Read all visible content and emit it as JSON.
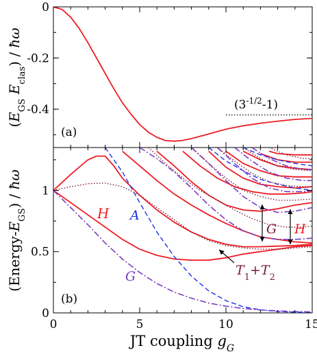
{
  "colors": {
    "solid": "#ee1c24",
    "dashed": "#1a31e6",
    "dashdot": "#7a3cc2",
    "dotted": "#7a1a3a",
    "axes": "#000000"
  },
  "chart_data": [
    {
      "panel": "a",
      "type": "line",
      "panel_label": "(a)",
      "ylabel": "(E_GS  E_clas) / ħω",
      "xlim": [
        0,
        15
      ],
      "ylim": [
        -0.55,
        0
      ],
      "yticks": [
        0,
        -0.2,
        -0.4
      ],
      "ytick_labels": [
        "0",
        "-0.2",
        "-0.4"
      ],
      "annotation": "(3^-1/2 - 1)",
      "asymptote_value": -0.4226,
      "asymptote_x": [
        10,
        15
      ],
      "series": [
        {
          "style": "solid",
          "x": [
            0,
            0.5,
            1,
            1.5,
            2,
            2.5,
            3,
            3.5,
            4,
            4.5,
            5,
            5.5,
            6,
            6.5,
            7,
            7.5,
            8,
            9,
            10,
            11,
            12,
            13,
            14,
            15
          ],
          "y": [
            0,
            -0.01,
            -0.04,
            -0.085,
            -0.14,
            -0.2,
            -0.26,
            -0.32,
            -0.375,
            -0.42,
            -0.46,
            -0.49,
            -0.51,
            -0.523,
            -0.525,
            -0.522,
            -0.515,
            -0.497,
            -0.478,
            -0.465,
            -0.455,
            -0.447,
            -0.44,
            -0.436
          ]
        }
      ]
    },
    {
      "panel": "b",
      "type": "line",
      "panel_label": "(b)",
      "xlabel": "JT coupling g_G",
      "ylabel": "(Energy-E_GS) / ħω",
      "xlim": [
        0,
        15
      ],
      "ylim": [
        0,
        1.35
      ],
      "xticks": [
        0,
        5,
        10,
        15
      ],
      "xtick_labels": [
        "0",
        "5",
        "10",
        "15"
      ],
      "yticks": [
        0,
        0.5,
        1
      ],
      "ytick_labels": [
        "0",
        "0.5",
        "1"
      ],
      "annotations": [
        {
          "text": "H",
          "x": 3.0,
          "y": 0.85
        },
        {
          "text": "A",
          "x": 4.9,
          "y": 0.76
        },
        {
          "text": "G",
          "x": 4.4,
          "y": 0.3
        },
        {
          "text": "G",
          "x": 12.8,
          "y": 0.65
        },
        {
          "text": "H",
          "x": 14.2,
          "y": 0.65
        },
        {
          "text": "T1+T2",
          "x": 11.0,
          "y": 0.3
        }
      ],
      "series": [
        {
          "style": "solid",
          "x": [
            0,
            1,
            2,
            3,
            4,
            5,
            6,
            7,
            8,
            9,
            10,
            11,
            12,
            13,
            14,
            15
          ],
          "y": [
            1.0,
            0.9,
            0.8,
            0.7,
            0.6,
            0.52,
            0.47,
            0.44,
            0.43,
            0.43,
            0.45,
            0.48,
            0.5,
            0.52,
            0.54,
            0.55
          ]
        },
        {
          "style": "solid",
          "x": [
            0,
            1,
            2,
            2.5,
            3,
            3.5,
            4,
            5,
            6,
            7,
            8,
            9,
            10,
            11,
            12,
            13,
            14,
            15
          ],
          "y": [
            1.0,
            1.13,
            1.25,
            1.28,
            1.28,
            1.2,
            1.1,
            0.96,
            0.84,
            0.74,
            0.66,
            0.6,
            0.56,
            0.54,
            0.54,
            0.545,
            0.55,
            0.56
          ]
        },
        {
          "style": "solid",
          "x": [
            4,
            5,
            6,
            7,
            8,
            9,
            10,
            11,
            12,
            13,
            14,
            15
          ],
          "y": [
            1.32,
            1.2,
            1.08,
            0.97,
            0.88,
            0.8,
            0.73,
            0.67,
            0.62,
            0.6,
            0.58,
            0.57
          ]
        },
        {
          "style": "solid",
          "x": [
            6,
            7,
            8,
            9,
            10,
            11,
            12,
            13,
            14,
            15
          ],
          "y": [
            1.32,
            1.2,
            1.07,
            0.96,
            0.88,
            0.84,
            0.83,
            0.85,
            0.88,
            0.9
          ]
        },
        {
          "style": "solid",
          "x": [
            7.5,
            8.5,
            9.5,
            10.5,
            11.5,
            12.5,
            13.5,
            14.5,
            15
          ],
          "y": [
            1.32,
            1.2,
            1.1,
            1.03,
            0.99,
            0.97,
            0.97,
            0.98,
            0.99
          ]
        },
        {
          "style": "solid",
          "x": [
            9,
            10,
            11,
            12,
            13,
            14,
            15
          ],
          "y": [
            1.32,
            1.19,
            1.1,
            1.05,
            1.03,
            1.02,
            1.03
          ]
        },
        {
          "style": "solid",
          "x": [
            10,
            11,
            12,
            13,
            14,
            15
          ],
          "y": [
            1.32,
            1.22,
            1.16,
            1.12,
            1.11,
            1.11
          ]
        },
        {
          "style": "solid",
          "x": [
            11,
            12,
            13,
            14,
            15
          ],
          "y": [
            1.32,
            1.25,
            1.2,
            1.18,
            1.17
          ]
        },
        {
          "style": "solid",
          "x": [
            12,
            13,
            14,
            15
          ],
          "y": [
            1.3,
            1.25,
            1.23,
            1.23
          ]
        },
        {
          "style": "solid",
          "x": [
            12.5,
            13,
            14,
            15
          ],
          "y": [
            1.32,
            1.3,
            1.29,
            1.29
          ]
        },
        {
          "style": "dashed",
          "x": [
            3,
            4,
            5,
            6,
            7,
            8,
            9,
            10,
            11,
            12,
            13,
            14,
            15
          ],
          "y": [
            1.35,
            1.15,
            0.9,
            0.66,
            0.46,
            0.3,
            0.18,
            0.1,
            0.05,
            0.025,
            0.012,
            0.006,
            0.003
          ]
        },
        {
          "style": "dashed",
          "x": [
            9,
            10,
            11,
            12,
            13,
            14,
            15
          ],
          "y": [
            1.35,
            1.24,
            1.16,
            1.09,
            1.05,
            1.02,
            1.0
          ]
        },
        {
          "style": "dashed",
          "x": [
            11,
            12,
            13,
            14,
            15
          ],
          "y": [
            1.35,
            1.29,
            1.25,
            1.22,
            1.2
          ]
        },
        {
          "style": "dashdot",
          "x": [
            0,
            1,
            2,
            3,
            4,
            5,
            6,
            7,
            8,
            9,
            10,
            11,
            12,
            13,
            14,
            15
          ],
          "y": [
            1.0,
            0.86,
            0.72,
            0.57,
            0.44,
            0.33,
            0.24,
            0.17,
            0.12,
            0.08,
            0.055,
            0.036,
            0.024,
            0.016,
            0.011,
            0.008
          ]
        },
        {
          "style": "dashdot",
          "x": [
            5,
            6,
            7,
            8,
            9,
            10,
            11,
            12,
            13,
            14,
            15
          ],
          "y": [
            1.35,
            1.26,
            1.15,
            1.02,
            0.88,
            0.76,
            0.67,
            0.62,
            0.6,
            0.6,
            0.61
          ]
        },
        {
          "style": "dashdot",
          "x": [
            8,
            9,
            10,
            11,
            12,
            13,
            14,
            15
          ],
          "y": [
            1.35,
            1.22,
            1.08,
            0.95,
            0.86,
            0.82,
            0.83,
            0.86
          ]
        },
        {
          "style": "dashdot",
          "x": [
            9.5,
            10.5,
            11.5,
            12.5,
            13.5,
            14.5,
            15
          ],
          "y": [
            1.35,
            1.22,
            1.1,
            1.02,
            0.99,
            0.99,
            1.0
          ]
        },
        {
          "style": "dashdot",
          "x": [
            10.5,
            11.5,
            12.5,
            13.5,
            14.5,
            15
          ],
          "y": [
            1.35,
            1.24,
            1.15,
            1.1,
            1.08,
            1.08
          ]
        },
        {
          "style": "dashdot",
          "x": [
            11.5,
            12.5,
            13.5,
            14.5,
            15
          ],
          "y": [
            1.35,
            1.26,
            1.2,
            1.17,
            1.17
          ]
        },
        {
          "style": "dotted",
          "x": [
            0,
            1,
            2,
            3,
            4,
            5,
            6,
            7,
            8,
            9,
            10,
            11,
            12,
            13,
            14,
            15
          ],
          "y": [
            1.0,
            1.03,
            1.055,
            1.06,
            1.03,
            0.96,
            0.86,
            0.76,
            0.66,
            0.59,
            0.55,
            0.53,
            0.52,
            0.52,
            0.53,
            0.54
          ]
        },
        {
          "style": "dotted",
          "x": [
            5.5,
            6.5,
            7.5,
            8.5,
            9.5,
            10.5,
            11.5,
            12.5,
            13.5,
            14.5,
            15
          ],
          "y": [
            1.35,
            1.22,
            1.1,
            1.0,
            0.92,
            0.84,
            0.77,
            0.72,
            0.7,
            0.7,
            0.71
          ]
        },
        {
          "style": "dotted",
          "x": [
            8,
            9,
            10,
            11,
            12,
            13,
            14,
            15
          ],
          "y": [
            1.35,
            1.22,
            1.1,
            1.0,
            0.95,
            0.92,
            0.92,
            0.93
          ]
        },
        {
          "style": "dotted",
          "x": [
            9.5,
            10.5,
            11.5,
            12.5,
            13.5,
            14.5,
            15
          ],
          "y": [
            1.35,
            1.24,
            1.14,
            1.07,
            1.04,
            1.03,
            1.03
          ]
        },
        {
          "style": "dotted",
          "x": [
            11,
            12,
            13,
            14,
            15
          ],
          "y": [
            1.35,
            1.26,
            1.2,
            1.17,
            1.16
          ]
        },
        {
          "style": "dotted",
          "x": [
            12.5,
            13.5,
            14.5,
            15
          ],
          "y": [
            1.35,
            1.29,
            1.26,
            1.26
          ]
        }
      ]
    }
  ]
}
